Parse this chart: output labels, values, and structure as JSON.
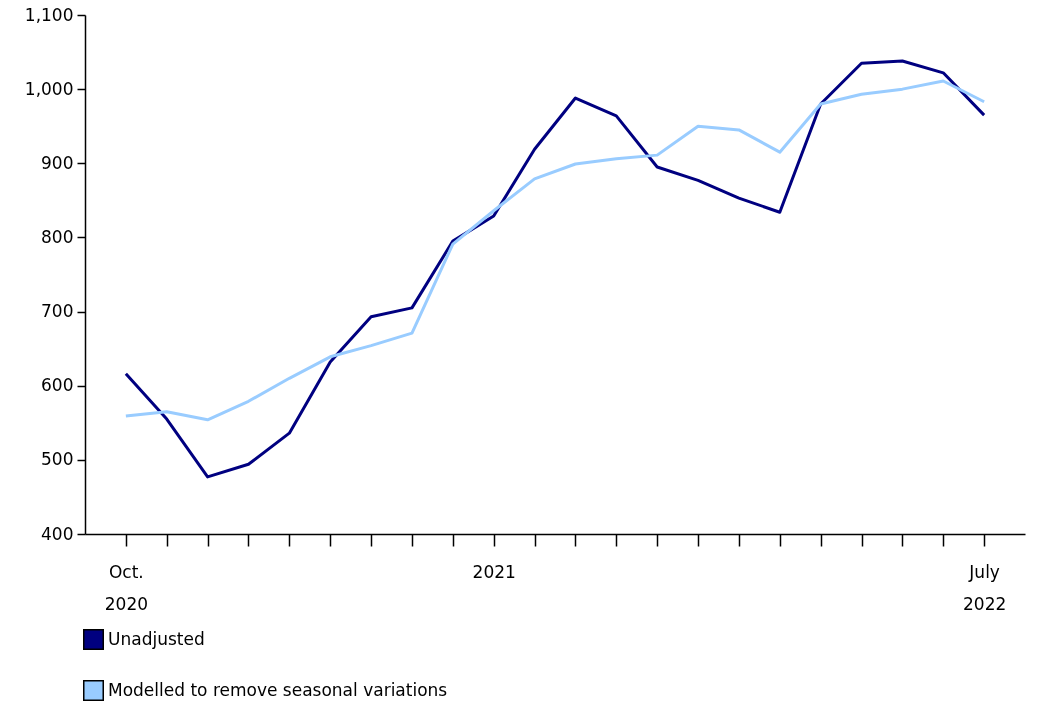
{
  "chart_data": {
    "type": "line",
    "categories": [
      "Oct. 2020",
      null,
      null,
      null,
      null,
      null,
      null,
      null,
      null,
      "2021",
      null,
      null,
      null,
      null,
      null,
      null,
      null,
      null,
      null,
      null,
      null,
      "July 2022"
    ],
    "series": [
      {
        "name": "Unadjusted",
        "color": "#000080",
        "values": [
          616,
          555,
          477,
          494,
          536,
          632,
          693,
          705,
          795,
          829,
          919,
          988,
          964,
          895,
          877,
          853,
          834,
          980,
          1035,
          1038,
          1022,
          965
        ]
      },
      {
        "name": "Modelled to remove seasonal variations",
        "color": "#99ccff",
        "values": [
          559,
          565,
          554,
          579,
          610,
          639,
          654,
          671,
          791,
          836,
          879,
          899,
          906,
          911,
          950,
          945,
          915,
          980,
          993,
          1000,
          1011,
          983
        ]
      }
    ],
    "ylim": [
      400,
      1100
    ],
    "yticks": [
      400,
      500,
      600,
      700,
      800,
      900,
      {
        "value": 1000,
        "label": "1,000"
      },
      {
        "value": 1100,
        "label": "1,100"
      }
    ],
    "grid": false,
    "legend": "bottom",
    "marker": "none",
    "line_style": "solid"
  }
}
